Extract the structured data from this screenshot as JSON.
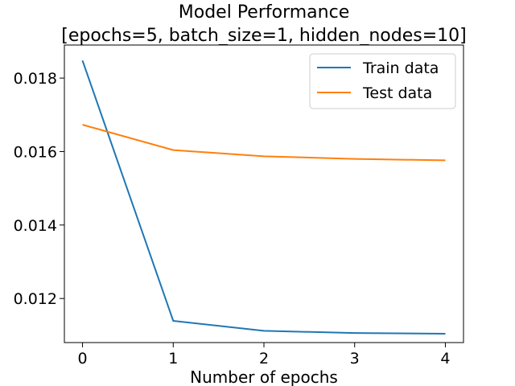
{
  "chart_data": {
    "type": "line",
    "title": "Model Performance\n[epochs=5, batch_size=1, hidden_nodes=10]",
    "title_lines": [
      "Model Performance",
      "[epochs=5, batch_size=1, hidden_nodes=10]"
    ],
    "xlabel": "Number of epochs",
    "ylabel": "",
    "x": [
      0,
      1,
      2,
      3,
      4
    ],
    "xticks": [
      0,
      1,
      2,
      3,
      4
    ],
    "xtick_labels": [
      "0",
      "1",
      "2",
      "3",
      "4"
    ],
    "yticks": [
      0.012,
      0.014,
      0.016,
      0.018
    ],
    "ytick_labels": [
      "0.012",
      "0.014",
      "0.016",
      "0.018"
    ],
    "xlim": [
      -0.2,
      4.2
    ],
    "ylim": [
      0.0108,
      0.0189
    ],
    "grid": false,
    "legend_position": "top-right",
    "series": [
      {
        "name": "Train data",
        "color": "#1f77b4",
        "values": [
          0.01848,
          0.01139,
          0.01112,
          0.01106,
          0.01104
        ]
      },
      {
        "name": "Test data",
        "color": "#ff7f0e",
        "values": [
          0.01673,
          0.01604,
          0.01587,
          0.0158,
          0.01576
        ]
      }
    ]
  }
}
